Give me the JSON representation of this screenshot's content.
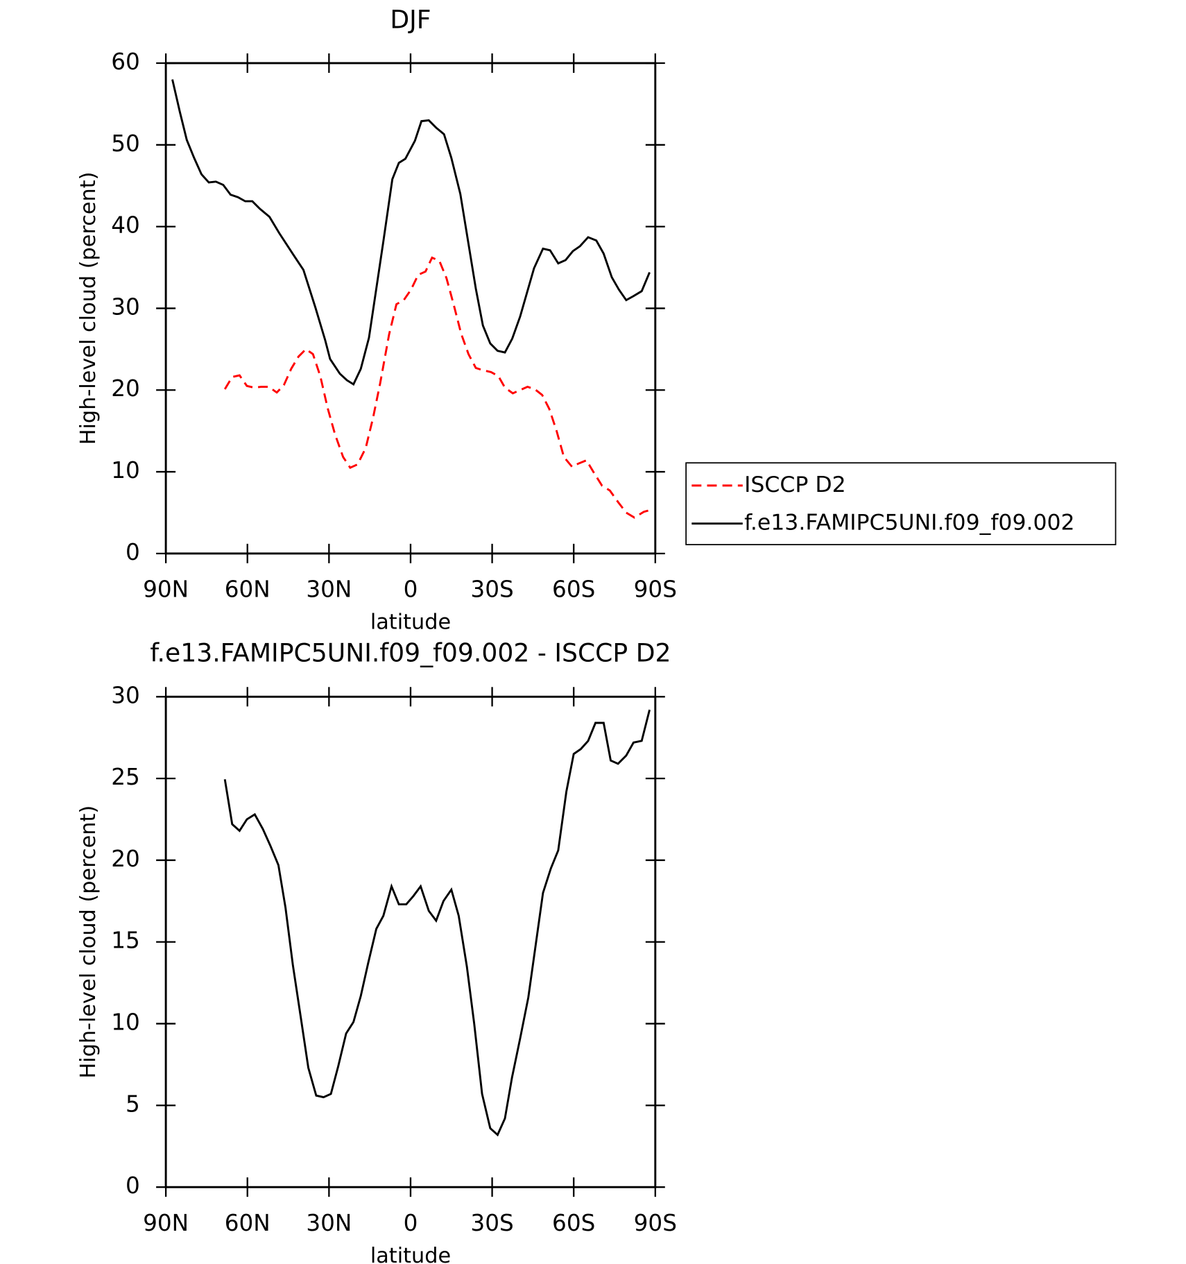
{
  "chart_data": [
    {
      "type": "line",
      "title": "DJF",
      "xlabel": "latitude",
      "ylabel": "High-level cloud (percent)",
      "xlim": [
        90,
        -90
      ],
      "ylim": [
        0,
        60
      ],
      "xticks": [
        {
          "value": 90,
          "label": "90N"
        },
        {
          "value": 60,
          "label": "60N"
        },
        {
          "value": 30,
          "label": "30N"
        },
        0,
        {
          "value": -30,
          "label": "30S"
        },
        {
          "value": -60,
          "label": "60S"
        },
        {
          "value": -90,
          "label": "90S"
        }
      ],
      "yticks": [
        0,
        10,
        20,
        30,
        40,
        50,
        60
      ],
      "legend": "right",
      "series": [
        {
          "name": "ISCCP D2",
          "color": "#ff0000",
          "line_style": "dashed",
          "x": [
            68.3,
            65.6,
            62.9,
            60.2,
            57.6,
            54.9,
            52.2,
            49.2,
            46.6,
            43.9,
            41.2,
            38.5,
            35.9,
            33.2,
            30.5,
            27.8,
            24.8,
            22.2,
            19.5,
            16.5,
            13.8,
            11.2,
            7.9,
            5.2,
            2.5,
            -0.2,
            -2.8,
            -5.5,
            -7.9,
            -10.6,
            -13.2,
            -15.9,
            -18.6,
            -21.3,
            -24.0,
            -26.9,
            -29.6,
            -32.3,
            -34.7,
            -37.6,
            -40.3,
            -43.0,
            -45.7,
            -48.4,
            -51.0,
            -53.7,
            -56.4,
            -59.4,
            -61.7,
            -64.7,
            -67.4,
            -70.4,
            -73.3,
            -76.3,
            -79.3,
            -82.3,
            -85.8,
            -87.9
          ],
          "values": [
            20.1,
            21.6,
            21.8,
            20.5,
            20.3,
            20.4,
            20.4,
            19.7,
            20.6,
            22.6,
            24.1,
            25.0,
            24.4,
            21.7,
            17.8,
            14.6,
            11.8,
            10.5,
            10.9,
            12.9,
            16.6,
            20.8,
            26.8,
            30.5,
            31.0,
            32.3,
            34.1,
            34.5,
            36.2,
            35.8,
            33.7,
            30.4,
            26.9,
            24.4,
            22.7,
            22.4,
            22.2,
            21.7,
            20.3,
            19.6,
            20.0,
            20.4,
            20.1,
            19.4,
            17.7,
            15.0,
            11.8,
            10.6,
            11.0,
            11.4,
            9.9,
            8.3,
            7.7,
            6.3,
            5.0,
            4.4,
            5.1,
            5.3
          ]
        },
        {
          "name": "f.e13.FAMIPC5UNI.f09_f09.002",
          "color": "#000000",
          "line_style": "solid",
          "x": [
            87.6,
            84.9,
            82.3,
            79.6,
            76.9,
            74.2,
            71.6,
            68.9,
            66.2,
            63.5,
            60.8,
            58.2,
            55.5,
            51.9,
            48.3,
            43.0,
            39.4,
            35.0,
            31.4,
            29.6,
            26.0,
            23.4,
            21.0,
            18.3,
            15.3,
            10.0,
            6.7,
            4.3,
            1.9,
            -1.6,
            -4.0,
            -6.7,
            -9.4,
            -12.3,
            -15.0,
            -18.3,
            -24.0,
            -26.6,
            -29.3,
            -32.0,
            -34.7,
            -37.4,
            -40.3,
            -45.4,
            -48.7,
            -51.3,
            -54.3,
            -57.0,
            -59.7,
            -62.3,
            -65.3,
            -68.3,
            -71.0,
            -74.0,
            -76.6,
            -79.3,
            -82.0,
            -85.0,
            -87.9
          ],
          "values": [
            58.0,
            54.1,
            50.6,
            48.4,
            46.4,
            45.4,
            45.5,
            45.1,
            43.9,
            43.6,
            43.1,
            43.1,
            42.2,
            41.2,
            39.2,
            36.5,
            34.7,
            30.1,
            26.1,
            23.8,
            22.0,
            21.2,
            20.7,
            22.6,
            26.4,
            38.2,
            45.8,
            47.8,
            48.3,
            50.5,
            52.9,
            53.0,
            52.1,
            51.3,
            48.4,
            44.0,
            32.4,
            27.9,
            25.7,
            24.8,
            24.6,
            26.3,
            29.0,
            34.9,
            37.3,
            37.1,
            35.5,
            35.9,
            37.0,
            37.6,
            38.7,
            38.3,
            36.7,
            33.8,
            32.3,
            31.0,
            31.5,
            32.1,
            34.4
          ]
        }
      ]
    },
    {
      "type": "line",
      "title": "f.e13.FAMIPC5UNI.f09_f09.002 - ISCCP D2",
      "xlabel": "latitude",
      "ylabel": "High-level cloud (percent)",
      "xlim": [
        90,
        -90
      ],
      "ylim": [
        0,
        30
      ],
      "xticks": [
        {
          "value": 90,
          "label": "90N"
        },
        {
          "value": 60,
          "label": "60N"
        },
        {
          "value": 30,
          "label": "30N"
        },
        0,
        {
          "value": -30,
          "label": "30S"
        },
        {
          "value": -60,
          "label": "60S"
        },
        {
          "value": -90,
          "label": "90S"
        }
      ],
      "yticks": [
        0,
        5,
        10,
        15,
        20,
        25,
        30
      ],
      "series": [
        {
          "color": "#000000",
          "line_style": "solid",
          "x": [
            68.3,
            65.6,
            62.9,
            60.2,
            57.3,
            54.3,
            51.6,
            48.6,
            46.0,
            43.3,
            40.3,
            37.6,
            34.7,
            32.0,
            29.3,
            26.6,
            23.7,
            21.0,
            18.3,
            15.6,
            12.6,
            10.0,
            7.0,
            4.3,
            1.6,
            -1.0,
            -3.7,
            -6.7,
            -9.4,
            -12.1,
            -15.0,
            -17.7,
            -20.7,
            -23.4,
            -26.3,
            -29.3,
            -32.0,
            -34.7,
            -37.3,
            -40.3,
            -43.3,
            -46.0,
            -48.7,
            -51.6,
            -54.3,
            -57.3,
            -60.0,
            -62.6,
            -65.3,
            -68.0,
            -71.0,
            -73.6,
            -76.3,
            -79.3,
            -82.0,
            -85.0,
            -87.9
          ],
          "values": [
            24.95,
            22.2,
            21.8,
            22.5,
            22.8,
            21.9,
            20.9,
            19.7,
            17.1,
            13.6,
            10.3,
            7.3,
            5.6,
            5.5,
            5.7,
            7.4,
            9.4,
            10.1,
            11.7,
            13.7,
            15.8,
            16.6,
            18.4,
            17.3,
            17.3,
            17.8,
            18.4,
            16.9,
            16.3,
            17.5,
            18.2,
            16.6,
            13.5,
            10.0,
            5.7,
            3.6,
            3.2,
            4.2,
            6.7,
            9.1,
            11.6,
            14.8,
            18.0,
            19.5,
            20.6,
            24.2,
            26.5,
            26.8,
            27.3,
            28.4,
            28.4,
            26.1,
            25.9,
            26.4,
            27.2,
            27.3,
            29.2
          ]
        }
      ]
    }
  ]
}
